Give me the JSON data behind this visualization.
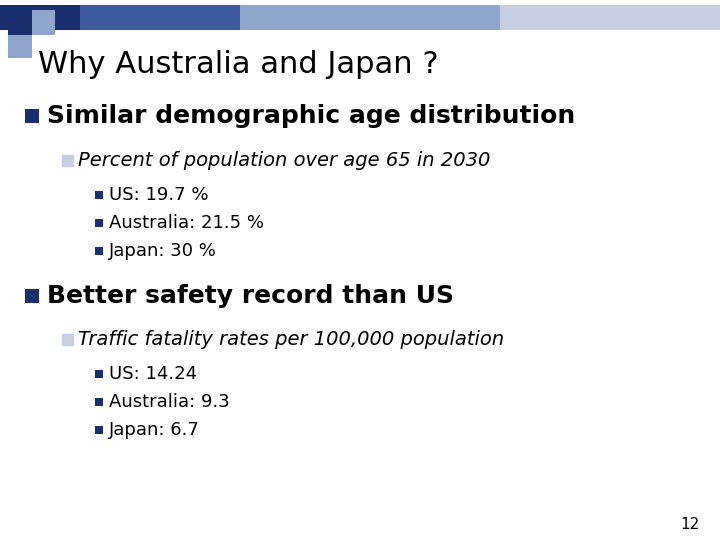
{
  "title": "Why Australia and Japan ?",
  "title_fontsize": 22,
  "background_color": "#ffffff",
  "slide_number": "12",
  "bullet1_text": "Similar demographic age distribution",
  "bullet1_fontsize": 18,
  "sub1_text": "Percent of population over age 65 in 2030",
  "sub1_fontsize": 14,
  "sub1_items": [
    "US: 19.7 %",
    "Australia: 21.5 %",
    "Japan: 30 %"
  ],
  "sub1_items_fontsize": 13,
  "bullet2_text": "Better safety record than US",
  "bullet2_fontsize": 18,
  "sub2_text": "Traffic fatality rates per 100,000 population",
  "sub2_fontsize": 14,
  "sub2_items": [
    "US: 14.24",
    "Australia: 9.3",
    "Japan: 6.7"
  ],
  "sub2_items_fontsize": 13,
  "bullet_square_color": "#1a2f6e",
  "sub_square_color": "#1a2f6e",
  "open_square_color": "#c8cfe0",
  "text_color": "#000000",
  "header_dark": "#1a2f6e",
  "header_mid": "#3d5a9e",
  "header_light": "#8fa5cc",
  "header_vlight": "#c5cfe0"
}
